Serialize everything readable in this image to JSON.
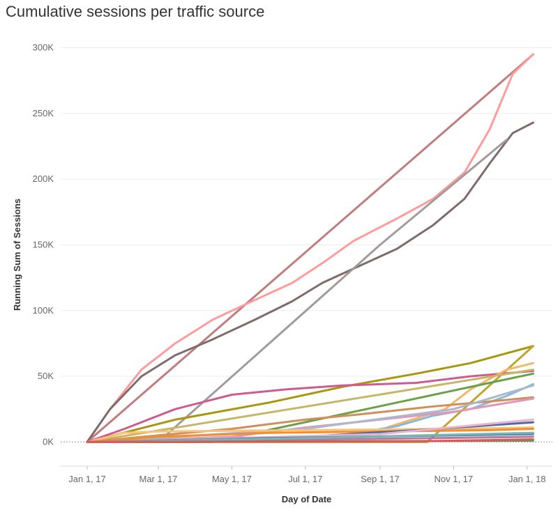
{
  "chart_data": {
    "type": "line",
    "title": "Cumulative sessions per traffic source",
    "xlabel": "Day of Date",
    "ylabel": "Running Sum of Sessions",
    "x_ticks": [
      "Jan 1, 17",
      "Mar 1, 17",
      "May 1, 17",
      "Jul 1, 17",
      "Sep 1, 17",
      "Nov 1, 17",
      "Jan 1, 18"
    ],
    "y_ticks": [
      "0K",
      "50K",
      "100K",
      "150K",
      "200K",
      "250K",
      "300K"
    ],
    "xlim": [
      "2016-12-10",
      "2018-01-22"
    ],
    "ylim": [
      -12000,
      313000
    ],
    "grid": "horizontal",
    "series": [
      {
        "color": "#c17d7d",
        "points": [
          [
            "2017-01-01",
            0
          ],
          [
            "2018-01-06",
            295000
          ]
        ]
      },
      {
        "color": "#ff9b9b",
        "points": [
          [
            "2017-01-01",
            0
          ],
          [
            "2017-01-20",
            25000
          ],
          [
            "2017-02-15",
            55000
          ],
          [
            "2017-03-15",
            75000
          ],
          [
            "2017-04-15",
            93000
          ],
          [
            "2017-05-20",
            108000
          ],
          [
            "2017-06-20",
            121000
          ],
          [
            "2017-07-15",
            136000
          ],
          [
            "2017-08-10",
            153000
          ],
          [
            "2017-09-15",
            170000
          ],
          [
            "2017-10-15",
            185000
          ],
          [
            "2017-11-10",
            205000
          ],
          [
            "2017-12-01",
            238000
          ],
          [
            "2017-12-20",
            280000
          ],
          [
            "2018-01-06",
            295000
          ]
        ]
      },
      {
        "color": "#7f6b6b",
        "points": [
          [
            "2017-01-01",
            0
          ],
          [
            "2017-01-20",
            25000
          ],
          [
            "2017-02-15",
            50000
          ],
          [
            "2017-03-15",
            66000
          ],
          [
            "2017-04-15",
            78000
          ],
          [
            "2017-05-20",
            93000
          ],
          [
            "2017-06-20",
            107000
          ],
          [
            "2017-07-15",
            121000
          ],
          [
            "2017-08-15",
            134000
          ],
          [
            "2017-09-15",
            147000
          ],
          [
            "2017-10-15",
            165000
          ],
          [
            "2017-11-10",
            185000
          ],
          [
            "2017-12-01",
            212000
          ],
          [
            "2017-12-20",
            235000
          ],
          [
            "2018-01-06",
            243000
          ]
        ]
      },
      {
        "color": "#a39b9b",
        "points": [
          [
            "2017-01-01",
            0
          ],
          [
            "2017-03-01",
            0
          ],
          [
            "2017-09-01",
            150000
          ],
          [
            "2017-12-15",
            230000
          ]
        ]
      },
      {
        "color": "#a8960f",
        "points": [
          [
            "2017-01-01",
            0
          ],
          [
            "2017-03-15",
            17000
          ],
          [
            "2017-06-01",
            30000
          ],
          [
            "2017-08-01",
            42000
          ],
          [
            "2017-10-01",
            52000
          ],
          [
            "2017-11-15",
            60000
          ],
          [
            "2018-01-06",
            73000
          ]
        ]
      },
      {
        "color": "#bfa52a",
        "points": [
          [
            "2017-01-01",
            0
          ],
          [
            "2017-10-10",
            0
          ],
          [
            "2018-01-06",
            73000
          ]
        ]
      },
      {
        "color": "#cc5c8f",
        "points": [
          [
            "2017-01-01",
            0
          ],
          [
            "2017-02-01",
            10000
          ],
          [
            "2017-03-15",
            25000
          ],
          [
            "2017-05-01",
            36000
          ],
          [
            "2017-06-15",
            40000
          ],
          [
            "2017-08-01",
            43000
          ],
          [
            "2017-10-01",
            45000
          ],
          [
            "2017-11-15",
            50000
          ],
          [
            "2018-01-06",
            54000
          ]
        ]
      },
      {
        "color": "#f5b56b",
        "points": [
          [
            "2017-01-01",
            0
          ],
          [
            "2017-08-20",
            5000
          ],
          [
            "2017-09-10",
            12000
          ],
          [
            "2017-10-01",
            18000
          ],
          [
            "2017-10-25",
            25000
          ],
          [
            "2017-11-15",
            40000
          ],
          [
            "2017-12-15",
            55000
          ],
          [
            "2018-01-06",
            60000
          ]
        ]
      },
      {
        "color": "#89b8db",
        "points": [
          [
            "2017-01-01",
            0
          ],
          [
            "2017-08-01",
            5000
          ],
          [
            "2017-09-15",
            12000
          ],
          [
            "2017-10-15",
            20000
          ],
          [
            "2017-11-15",
            25000
          ],
          [
            "2017-12-15",
            35000
          ],
          [
            "2018-01-06",
            44000
          ]
        ]
      },
      {
        "color": "#c6b768",
        "points": [
          [
            "2017-01-01",
            0
          ],
          [
            "2018-01-06",
            55000
          ]
        ]
      },
      {
        "color": "#6aa046",
        "points": [
          [
            "2017-01-01",
            0
          ],
          [
            "2017-04-15",
            0
          ],
          [
            "2017-09-15",
            30000
          ],
          [
            "2017-12-01",
            45000
          ],
          [
            "2018-01-06",
            52000
          ]
        ]
      },
      {
        "color": "#d08f58",
        "points": [
          [
            "2017-01-01",
            0
          ],
          [
            "2017-03-01",
            5000
          ],
          [
            "2017-05-01",
            10000
          ],
          [
            "2017-07-01",
            17000
          ],
          [
            "2017-08-15",
            21000
          ],
          [
            "2017-10-15",
            27000
          ],
          [
            "2017-12-15",
            32000
          ],
          [
            "2018-01-06",
            34000
          ]
        ]
      },
      {
        "color": "#e794b8",
        "points": [
          [
            "2017-01-01",
            0
          ],
          [
            "2017-05-01",
            4000
          ],
          [
            "2017-07-01",
            11000
          ],
          [
            "2017-09-01",
            17000
          ],
          [
            "2017-11-01",
            23000
          ],
          [
            "2018-01-06",
            33000
          ]
        ]
      },
      {
        "color": "#a9b9ca",
        "points": [
          [
            "2017-01-01",
            0
          ],
          [
            "2017-07-01",
            10000
          ],
          [
            "2017-11-01",
            25000
          ],
          [
            "2018-01-06",
            43000
          ]
        ]
      },
      {
        "color": "#f9c27a",
        "points": [
          [
            "2017-01-01",
            0
          ],
          [
            "2017-02-01",
            7000
          ],
          [
            "2017-03-01",
            8000
          ],
          [
            "2017-07-01",
            9000
          ],
          [
            "2017-11-01",
            10000
          ],
          [
            "2018-01-06",
            11000
          ]
        ]
      },
      {
        "color": "#f28e2b",
        "points": [
          [
            "2017-01-01",
            0
          ],
          [
            "2017-03-01",
            4000
          ],
          [
            "2017-06-01",
            7000
          ],
          [
            "2017-09-01",
            8000
          ],
          [
            "2017-12-01",
            9000
          ],
          [
            "2018-01-06",
            10000
          ]
        ]
      },
      {
        "color": "#4e6b9c",
        "points": [
          [
            "2017-01-01",
            0
          ],
          [
            "2017-07-01",
            4000
          ],
          [
            "2017-10-01",
            9000
          ],
          [
            "2018-01-06",
            15000
          ]
        ]
      },
      {
        "color": "#e9b3d2",
        "points": [
          [
            "2017-01-01",
            0
          ],
          [
            "2017-09-01",
            6000
          ],
          [
            "2018-01-06",
            17000
          ]
        ]
      },
      {
        "color": "#b07aa1",
        "points": [
          [
            "2017-01-01",
            0
          ],
          [
            "2017-06-01",
            1500
          ],
          [
            "2017-12-01",
            3500
          ],
          [
            "2018-01-06",
            4000
          ]
        ]
      },
      {
        "color": "#4e79a7",
        "points": [
          [
            "2017-01-01",
            0
          ],
          [
            "2017-06-01",
            3000
          ],
          [
            "2017-12-01",
            5500
          ],
          [
            "2018-01-06",
            6000
          ]
        ]
      },
      {
        "color": "#76b7b2",
        "points": [
          [
            "2017-01-01",
            0
          ],
          [
            "2017-07-01",
            3000
          ],
          [
            "2018-01-06",
            7000
          ]
        ]
      },
      {
        "color": "#59a14f",
        "points": [
          [
            "2017-01-01",
            0
          ],
          [
            "2018-01-06",
            1000
          ]
        ]
      },
      {
        "color": "#e15759",
        "points": [
          [
            "2017-01-01",
            0
          ],
          [
            "2017-10-01",
            500
          ],
          [
            "2018-01-06",
            2000
          ]
        ]
      }
    ]
  }
}
